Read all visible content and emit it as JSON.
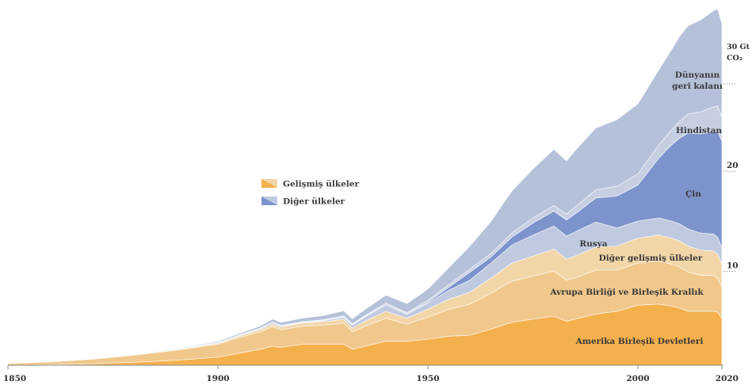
{
  "chart_data": {
    "type": "area",
    "stacked": true,
    "x": [
      1850,
      1860,
      1870,
      1880,
      1890,
      1900,
      1905,
      1910,
      1913,
      1915,
      1920,
      1925,
      1930,
      1932,
      1935,
      1940,
      1945,
      1950,
      1955,
      1960,
      1965,
      1970,
      1975,
      1980,
      1983,
      1985,
      1990,
      1995,
      2000,
      2005,
      2008,
      2010,
      2012,
      2015,
      2018,
      2019,
      2020
    ],
    "xticks": [
      "1850",
      "1900",
      "1950",
      "2000",
      "2020"
    ],
    "xlim": [
      1850,
      2020
    ],
    "yticks": [
      "10",
      "20"
    ],
    "ylim": [
      0,
      36
    ],
    "unit_label": "30 Gt CO₂",
    "unit_lines": [
      "30 Gt",
      "CO₂"
    ],
    "series": [
      {
        "name": "Amerika Birleşik Devletleri",
        "group": "developed",
        "color": "#f4b04c",
        "values": [
          0.0,
          0.05,
          0.15,
          0.3,
          0.5,
          0.8,
          1.2,
          1.6,
          1.9,
          1.8,
          2.1,
          2.1,
          2.1,
          1.6,
          1.9,
          2.4,
          2.4,
          2.6,
          2.9,
          3.0,
          3.6,
          4.3,
          4.6,
          4.9,
          4.4,
          4.6,
          5.1,
          5.4,
          6.0,
          6.1,
          5.9,
          5.7,
          5.4,
          5.4,
          5.4,
          5.3,
          4.7
        ]
      },
      {
        "name": "Avrupa Birliği ve Birleşik Krallık",
        "group": "developed",
        "color": "#f0c88c",
        "values": [
          0.18,
          0.3,
          0.45,
          0.7,
          1.0,
          1.3,
          1.55,
          1.75,
          1.95,
          1.75,
          1.8,
          1.9,
          2.1,
          1.75,
          2.0,
          2.3,
          1.7,
          2.2,
          2.7,
          3.1,
          3.6,
          4.1,
          4.3,
          4.5,
          4.1,
          4.1,
          4.4,
          4.1,
          4.2,
          4.3,
          4.2,
          4.1,
          3.9,
          3.6,
          3.6,
          3.4,
          3.1
        ]
      },
      {
        "name": "Diğer gelişmiş ülkeler",
        "group": "developed",
        "color": "#f2d6a8",
        "values": [
          0.0,
          0.0,
          0.02,
          0.03,
          0.05,
          0.1,
          0.15,
          0.2,
          0.25,
          0.25,
          0.3,
          0.35,
          0.4,
          0.35,
          0.5,
          0.7,
          0.6,
          0.8,
          1.0,
          1.2,
          1.5,
          1.8,
          2.0,
          2.2,
          2.1,
          2.2,
          2.3,
          2.4,
          2.5,
          2.6,
          2.6,
          2.6,
          2.6,
          2.5,
          2.4,
          2.4,
          2.3
        ]
      },
      {
        "name": "Rusya",
        "group": "other",
        "color": "#bfcae0",
        "values": [
          0.0,
          0.0,
          0.0,
          0.01,
          0.02,
          0.05,
          0.07,
          0.1,
          0.15,
          0.1,
          0.05,
          0.1,
          0.2,
          0.3,
          0.4,
          0.6,
          0.4,
          0.6,
          0.9,
          1.2,
          1.5,
          1.8,
          2.1,
          2.3,
          2.3,
          2.4,
          2.5,
          1.8,
          1.7,
          1.7,
          1.7,
          1.7,
          1.7,
          1.7,
          1.7,
          1.7,
          1.6
        ]
      },
      {
        "name": "Çin",
        "group": "other",
        "color": "#7d93cc",
        "values": [
          0.0,
          0.0,
          0.0,
          0.0,
          0.0,
          0.01,
          0.01,
          0.02,
          0.02,
          0.02,
          0.03,
          0.03,
          0.05,
          0.05,
          0.07,
          0.1,
          0.05,
          0.1,
          0.3,
          0.8,
          0.6,
          0.8,
          1.2,
          1.5,
          1.6,
          1.8,
          2.4,
          3.2,
          3.6,
          6.0,
          7.6,
          8.6,
          9.6,
          9.9,
          10.2,
          10.5,
          10.7
        ]
      },
      {
        "name": "Hindistan",
        "group": "other",
        "color": "#c6cfe2",
        "values": [
          0.0,
          0.0,
          0.0,
          0.0,
          0.01,
          0.02,
          0.03,
          0.04,
          0.05,
          0.05,
          0.06,
          0.07,
          0.08,
          0.08,
          0.09,
          0.1,
          0.1,
          0.2,
          0.25,
          0.3,
          0.35,
          0.4,
          0.5,
          0.55,
          0.6,
          0.7,
          0.8,
          1.0,
          1.1,
          1.3,
          1.5,
          1.7,
          1.9,
          2.2,
          2.5,
          2.6,
          2.4
        ]
      },
      {
        "name": "Dünyanın geri kalanı",
        "group": "other",
        "color": "#b5c1d9",
        "values": [
          0.0,
          0.0,
          0.0,
          0.02,
          0.05,
          0.1,
          0.15,
          0.2,
          0.3,
          0.3,
          0.35,
          0.4,
          0.5,
          0.5,
          0.6,
          0.8,
          0.9,
          1.1,
          1.7,
          2.3,
          3.2,
          4.2,
          4.9,
          5.6,
          5.3,
          5.6,
          6.2,
          6.6,
          7.0,
          7.5,
          8.0,
          8.5,
          8.8,
          9.2,
          9.6,
          9.7,
          9.3
        ]
      }
    ],
    "series_labels": [
      {
        "lines": [
          "Amerika Birleşik Devletleri"
        ]
      },
      {
        "lines": [
          "Avrupa Birliği ve Birleşik Krallık"
        ]
      },
      {
        "lines": [
          "Diğer gelişmiş ülkeler"
        ]
      },
      {
        "lines": [
          "Rusya"
        ]
      },
      {
        "lines": [
          "Çin"
        ]
      },
      {
        "lines": [
          "Hindistan"
        ]
      },
      {
        "lines": [
          "Dünyanın",
          "geri kalanı"
        ]
      }
    ],
    "legend": {
      "placement": "center-left",
      "items": [
        {
          "label": "Gelişmiş ülkeler",
          "colors": [
            "#f4b04c",
            "#f2d6a8"
          ]
        },
        {
          "label": "Diğer ülkeler",
          "colors": [
            "#7d93cc",
            "#bfcae0"
          ]
        }
      ]
    },
    "grid": false
  }
}
